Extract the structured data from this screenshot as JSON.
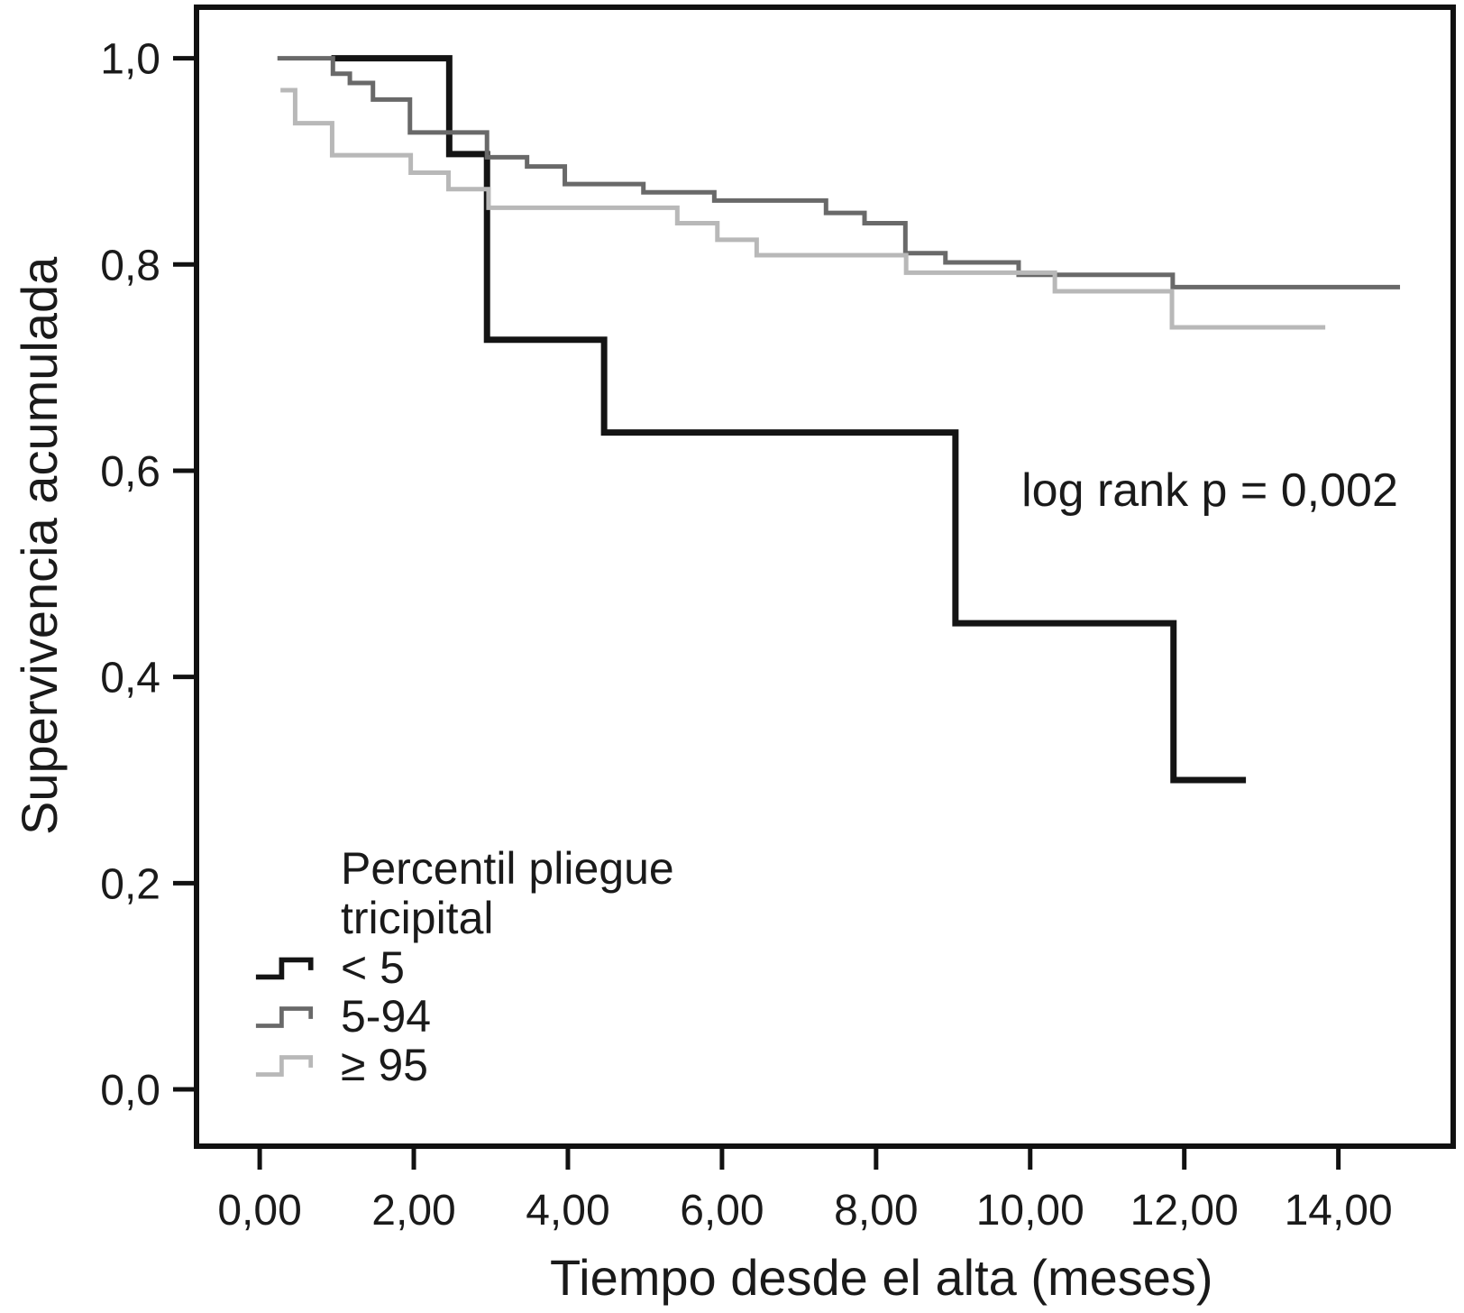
{
  "chart_data": {
    "type": "line",
    "subtype": "kaplan-meier-step",
    "title": "",
    "xlabel": "Tiempo desde el alta (meses)",
    "ylabel": "Supervivencia acumulada",
    "annotation": "log rank p = 0,002",
    "legend_title": "Percentil pliegue tricipital",
    "legend_position": "lower-left-inside",
    "grid": false,
    "xlim": [
      -0.82,
      15.49
    ],
    "ylim": [
      -0.0551,
      1.0495
    ],
    "x_ticks": [
      0,
      2,
      4,
      6,
      8,
      10,
      12,
      14
    ],
    "x_tick_labels": [
      "0,00",
      "2,00",
      "4,00",
      "6,00",
      "8,00",
      "10,00",
      "12,00",
      "14,00"
    ],
    "y_ticks": [
      0,
      0.2,
      0.4,
      0.6,
      0.8,
      1.0
    ],
    "y_tick_labels": [
      "0,0",
      "0,2",
      "0,4",
      "0,6",
      "0,8",
      "1,0"
    ],
    "frame_color": "#111111",
    "series": [
      {
        "key": "lt5",
        "name": "< 5",
        "color": "#141414",
        "line_width": 7,
        "end_t": 12.8,
        "steps": [
          [
            0.93,
            1.0
          ],
          [
            2.46,
            0.907
          ],
          [
            2.95,
            0.727
          ],
          [
            4.47,
            0.637
          ],
          [
            9.03,
            0.452
          ],
          [
            11.86,
            0.3
          ]
        ]
      },
      {
        "key": "5to94",
        "name": "5-94",
        "color": "#696969",
        "line_width": 5,
        "end_t": 14.8,
        "steps": [
          [
            0.23,
            1.0
          ],
          [
            0.95,
            0.985
          ],
          [
            1.17,
            0.976
          ],
          [
            1.47,
            0.96
          ],
          [
            1.95,
            0.928
          ],
          [
            2.95,
            0.904
          ],
          [
            3.47,
            0.895
          ],
          [
            3.96,
            0.878
          ],
          [
            4.98,
            0.87
          ],
          [
            5.9,
            0.862
          ],
          [
            7.35,
            0.85
          ],
          [
            7.85,
            0.84
          ],
          [
            8.38,
            0.811
          ],
          [
            8.9,
            0.802
          ],
          [
            9.85,
            0.79
          ],
          [
            11.85,
            0.778
          ]
        ]
      },
      {
        "key": "ge95",
        "name": "≥ 95",
        "color": "#b8b8b8",
        "line_width": 5,
        "end_t": 13.83,
        "steps": [
          [
            0.27,
            0.969
          ],
          [
            0.46,
            0.937
          ],
          [
            0.94,
            0.906
          ],
          [
            1.96,
            0.889
          ],
          [
            2.45,
            0.873
          ],
          [
            2.97,
            0.855
          ],
          [
            5.42,
            0.84
          ],
          [
            5.94,
            0.824
          ],
          [
            6.45,
            0.809
          ],
          [
            8.39,
            0.792
          ],
          [
            10.32,
            0.774
          ],
          [
            11.84,
            0.739
          ]
        ]
      }
    ]
  }
}
